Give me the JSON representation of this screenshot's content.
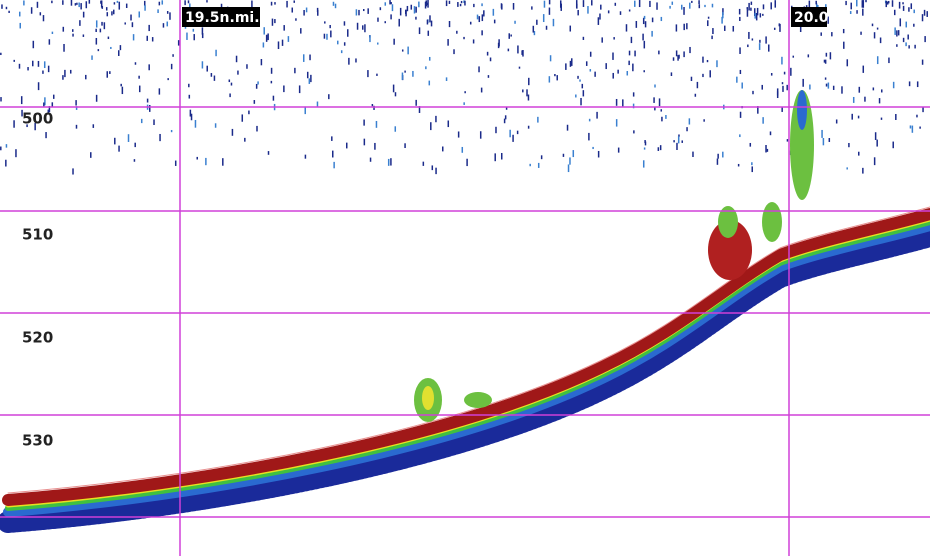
{
  "depth_labels": [
    "500",
    "510",
    "520",
    "530"
  ],
  "distance_labels": [
    "19.5n.mi.",
    "20.0"
  ]
}
